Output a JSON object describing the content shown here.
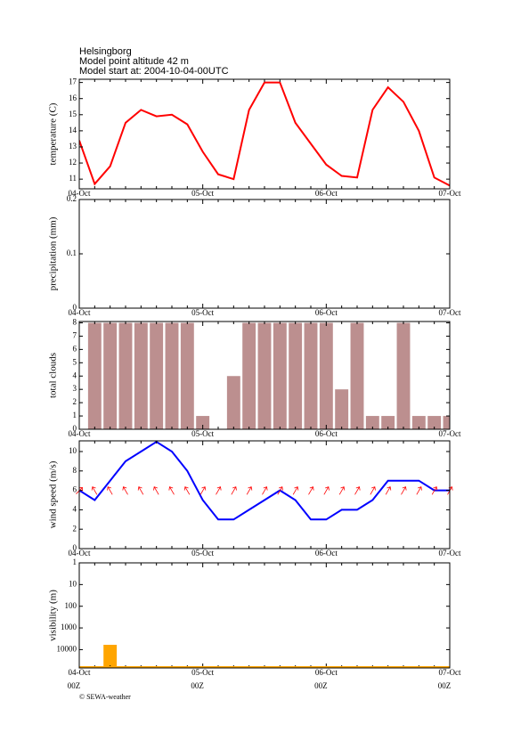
{
  "header": {
    "lines": [
      "Helsingborg",
      "Model point altitude  42 m",
      "Model start at: 2004-10-04-00UTC"
    ]
  },
  "footer": "© SEWA-weather",
  "chart_data": [
    {
      "type": "line",
      "y_label": "temperature (C)",
      "color": "#ff0000",
      "categories": [
        "04-Oct",
        null,
        null,
        null,
        null,
        null,
        null,
        null,
        "05-Oct",
        null,
        null,
        null,
        null,
        null,
        null,
        null,
        "06-Oct",
        null,
        null,
        null,
        null,
        null,
        null,
        null,
        "07-Oct"
      ],
      "values": [
        13.4,
        10.7,
        11.8,
        14.5,
        15.3,
        14.9,
        15.0,
        14.4,
        12.7,
        11.3,
        11.0,
        15.3,
        17.0,
        17.0,
        14.5,
        13.2,
        11.9,
        11.2,
        11.1,
        15.3,
        16.7,
        15.8,
        14.0,
        11.1,
        10.6
      ],
      "ylim": [
        10.4,
        17.2
      ],
      "yticks": [
        11,
        12,
        13,
        14,
        15,
        16,
        17
      ]
    },
    {
      "type": "bar",
      "y_label": "precipitation (mm)",
      "color": "#4a7fd0",
      "categories": [
        "04-Oct",
        null,
        null,
        null,
        null,
        null,
        null,
        null,
        "05-Oct",
        null,
        null,
        null,
        null,
        null,
        null,
        null,
        "06-Oct",
        null,
        null,
        null,
        null,
        null,
        null,
        null,
        "07-Oct"
      ],
      "ylim": [
        0,
        0.2
      ],
      "yticks": [
        0,
        0.1,
        0.2
      ]
    },
    {
      "type": "bar",
      "y_label": "total clouds",
      "color": "#bc8f8f",
      "categories": [
        "04-Oct",
        null,
        null,
        null,
        null,
        null,
        null,
        null,
        "05-Oct",
        null,
        null,
        null,
        null,
        null,
        null,
        null,
        "06-Oct",
        null,
        null,
        null,
        null,
        null,
        null,
        null,
        "07-Oct"
      ],
      "values": [
        null,
        8,
        8,
        8,
        8,
        8,
        8,
        8,
        1,
        0,
        4,
        8,
        8,
        8,
        8,
        8,
        8,
        3,
        8,
        1,
        1,
        8,
        1,
        1,
        1
      ],
      "ylim": [
        0,
        8.1
      ],
      "yticks": [
        0,
        1,
        2,
        3,
        4,
        5,
        6,
        7,
        8
      ]
    },
    {
      "type": "line",
      "y_label": "wind speed (m/s)",
      "color": "#0000ff",
      "arrow_color": "#ff0000",
      "categories": [
        "04-Oct",
        null,
        null,
        null,
        null,
        null,
        null,
        null,
        "05-Oct",
        null,
        null,
        null,
        null,
        null,
        null,
        null,
        "06-Oct",
        null,
        null,
        null,
        null,
        null,
        null,
        null,
        "07-Oct"
      ],
      "values": [
        6,
        5,
        7,
        9,
        10,
        11,
        10,
        8,
        5,
        3,
        3,
        4,
        5,
        6,
        5,
        3,
        3,
        4,
        4,
        5,
        7,
        7,
        7,
        6,
        6
      ],
      "arrow_directions": [
        45,
        330,
        330,
        330,
        330,
        330,
        330,
        330,
        30,
        30,
        30,
        30,
        30,
        30,
        30,
        30,
        30,
        30,
        30,
        30,
        30,
        30,
        30,
        30,
        30
      ],
      "ylim": [
        0,
        11.1
      ],
      "yticks": [
        0,
        2,
        4,
        6,
        8,
        10
      ]
    },
    {
      "type": "bar",
      "y_label": "visibility (m)",
      "color": "#ffa500",
      "yscale": "log",
      "y_inverted": true,
      "categories": [
        "04-Oct",
        null,
        null,
        null,
        null,
        null,
        null,
        null,
        "05-Oct",
        null,
        null,
        null,
        null,
        null,
        null,
        null,
        "06-Oct",
        null,
        null,
        null,
        null,
        null,
        null,
        null,
        "07-Oct"
      ],
      "time_labels": [
        "00Z",
        null,
        null,
        null,
        null,
        null,
        null,
        null,
        "00Z",
        null,
        null,
        null,
        null,
        null,
        null,
        null,
        "00Z",
        null,
        null,
        null,
        null,
        null,
        null,
        null,
        "00Z"
      ],
      "values": [
        null,
        null,
        6000,
        null,
        null,
        null,
        null,
        null,
        null,
        null,
        null,
        null,
        null,
        null,
        null,
        null,
        null,
        null,
        null,
        null,
        null,
        null,
        null,
        null,
        null
      ],
      "ylim": [
        1,
        70000
      ],
      "yticks": [
        1,
        10,
        100,
        1000,
        10000
      ]
    }
  ]
}
